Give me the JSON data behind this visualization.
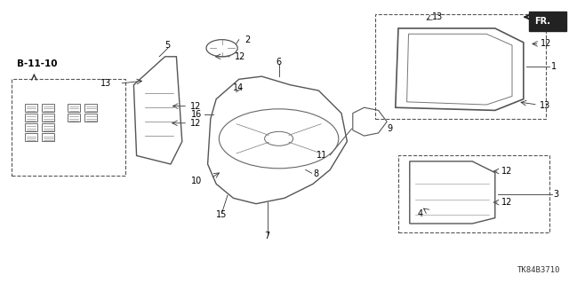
{
  "title": "",
  "diagram_id": "TK84B3710",
  "bg_color": "#ffffff",
  "line_color": "#333333",
  "label_color": "#000000",
  "fr_label": "FR.",
  "ref_label": "B-11-10",
  "figsize": [
    6.4,
    3.19
  ],
  "dpi": 100
}
